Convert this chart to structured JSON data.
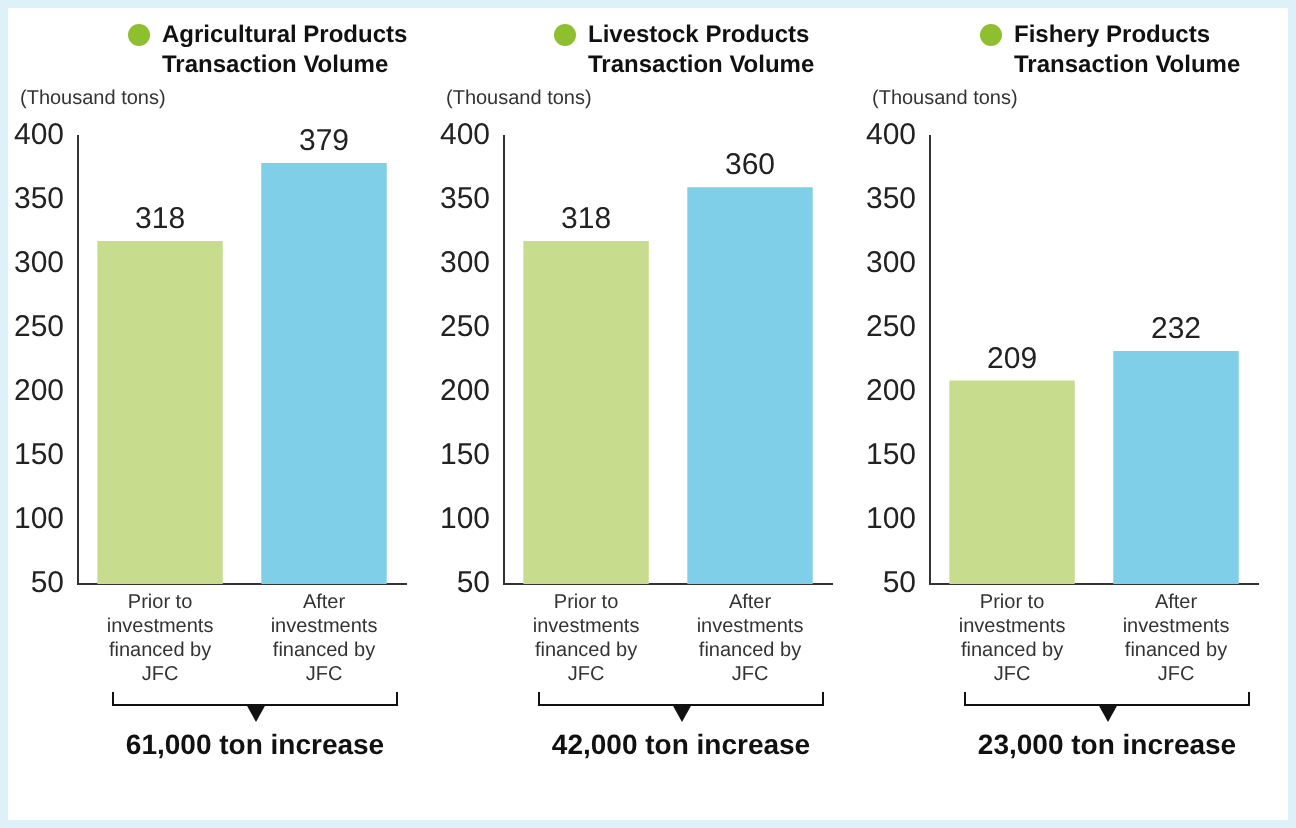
{
  "chart_data": [
    {
      "type": "bar",
      "title": "Agricultural Products\nTransaction Volume",
      "ylabel": "(Thousand tons)",
      "categories": [
        "Prior to investments financed by JFC",
        "After investments financed by JFC"
      ],
      "values": [
        318,
        379
      ],
      "colors": [
        "#c8dc8e",
        "#7fcfe9"
      ],
      "ylim": [
        50,
        400
      ],
      "yticks": [
        50,
        100,
        150,
        200,
        250,
        300,
        350,
        400
      ],
      "data_labels": true,
      "annotations": [
        "61,000 ton increase"
      ]
    },
    {
      "type": "bar",
      "title": "Livestock Products\nTransaction Volume",
      "ylabel": "(Thousand tons)",
      "categories": [
        "Prior to investments financed by JFC",
        "After investments financed by JFC"
      ],
      "values": [
        318,
        360
      ],
      "colors": [
        "#c8dc8e",
        "#7fcfe9"
      ],
      "ylim": [
        50,
        400
      ],
      "yticks": [
        50,
        100,
        150,
        200,
        250,
        300,
        350,
        400
      ],
      "data_labels": true,
      "annotations": [
        "42,000 ton increase"
      ]
    },
    {
      "type": "bar",
      "title": "Fishery Products\nTransaction Volume",
      "ylabel": "(Thousand tons)",
      "categories": [
        "Prior to investments financed by JFC",
        "After investments financed by JFC"
      ],
      "values": [
        209,
        232
      ],
      "colors": [
        "#c8dc8e",
        "#7fcfe9"
      ],
      "ylim": [
        50,
        400
      ],
      "yticks": [
        50,
        100,
        150,
        200,
        250,
        300,
        350,
        400
      ],
      "data_labels": true,
      "annotations": [
        "23,000 ton increase"
      ]
    }
  ]
}
